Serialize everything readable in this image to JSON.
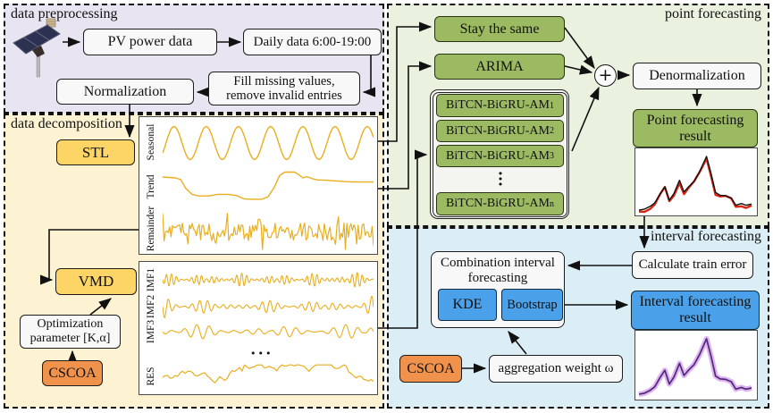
{
  "palette": {
    "lavender": "#e9e4f1",
    "cream": "#fdf3d2",
    "green_bg": "#eaf1df",
    "blue_bg": "#dbedf5",
    "yellow": "#fcd566",
    "orange": "#f0914c",
    "green": "#9cba62",
    "blue": "#4ba1e9",
    "gold": "#e9ae1e",
    "ink": "#111111",
    "point_actual": "#d92613",
    "point_pred": "#111111",
    "interval_line": "#4b2b78",
    "interval_band": "#dba4ef"
  },
  "sections": {
    "preprocessing": {
      "label": "data preprocessing"
    },
    "decomposition": {
      "label": "data decomposition"
    },
    "point": {
      "label": "point forecasting"
    },
    "interval": {
      "label": "interval forecasting"
    }
  },
  "preprocessing": {
    "pv_icon": "pv-solar-panel",
    "pv_power_data": "PV power data",
    "daily_data": "Daily data 6:00-19:00",
    "fill_line1": "Fill missing values,",
    "fill_line2": "remove invalid entries",
    "normalization": "Normalization"
  },
  "decomposition": {
    "stl": "STL",
    "vmd": "VMD",
    "opt_line1": "Optimization",
    "opt_line2": "parameter [K,α]",
    "cscoa": "CSCOA",
    "stl_plot_labels": {
      "seasonal": "Seasonal",
      "trend": "Trend",
      "remainder": "Remainder"
    },
    "vmd_plot_labels": {
      "imf1": "IMF1",
      "imf2": "IMF2",
      "imf3": "IMF3",
      "res": "RES",
      "dots": "•••"
    }
  },
  "point": {
    "stay_the_same": "Stay the same",
    "arima": "ARIMA",
    "models": [
      {
        "base": "BiTCN-BiGRU-AM",
        "sub": "1"
      },
      {
        "base": "BiTCN-BiGRU-AM",
        "sub": "2"
      },
      {
        "base": "BiTCN-BiGRU-AM",
        "sub": "3"
      },
      {
        "base": "BiTCN-BiGRU-AM",
        "sub": "n"
      }
    ],
    "vertical_dots": "•\n•\n•",
    "plus": "+",
    "denormalization": "Denormalization",
    "result_line1": "Point forecasting",
    "result_line2": "result"
  },
  "interval": {
    "calculate_train_error": "Calculate train error",
    "combination_line1": "Combination interval",
    "combination_line2": "forecasting",
    "kde": "KDE",
    "bootstrap": "Bootstrap",
    "result_line1": "Interval forecasting",
    "result_line2": "result",
    "cscoa": "CSCOA",
    "aggregation_weight": "aggregation weight ω"
  },
  "chart_data": {
    "type": "line",
    "note": "normalized forecast curve shown in both result mini-plots (x 0-1 left-right, y 0-1 bottom-up)",
    "series": [
      {
        "name": "forecast result",
        "values": []
      }
    ],
    "curve": [
      [
        0,
        0.03
      ],
      [
        0.05,
        0.05
      ],
      [
        0.1,
        0.1
      ],
      [
        0.14,
        0.16
      ],
      [
        0.19,
        0.33
      ],
      [
        0.23,
        0.45
      ],
      [
        0.27,
        0.21
      ],
      [
        0.31,
        0.33
      ],
      [
        0.36,
        0.57
      ],
      [
        0.4,
        0.36
      ],
      [
        0.44,
        0.45
      ],
      [
        0.49,
        0.55
      ],
      [
        0.54,
        0.73
      ],
      [
        0.6,
        1.0
      ],
      [
        0.64,
        0.7
      ],
      [
        0.68,
        0.35
      ],
      [
        0.72,
        0.3
      ],
      [
        0.77,
        0.29
      ],
      [
        0.82,
        0.25
      ],
      [
        0.86,
        0.12
      ],
      [
        0.91,
        0.15
      ],
      [
        0.95,
        0.12
      ],
      [
        1,
        0.14
      ]
    ]
  }
}
